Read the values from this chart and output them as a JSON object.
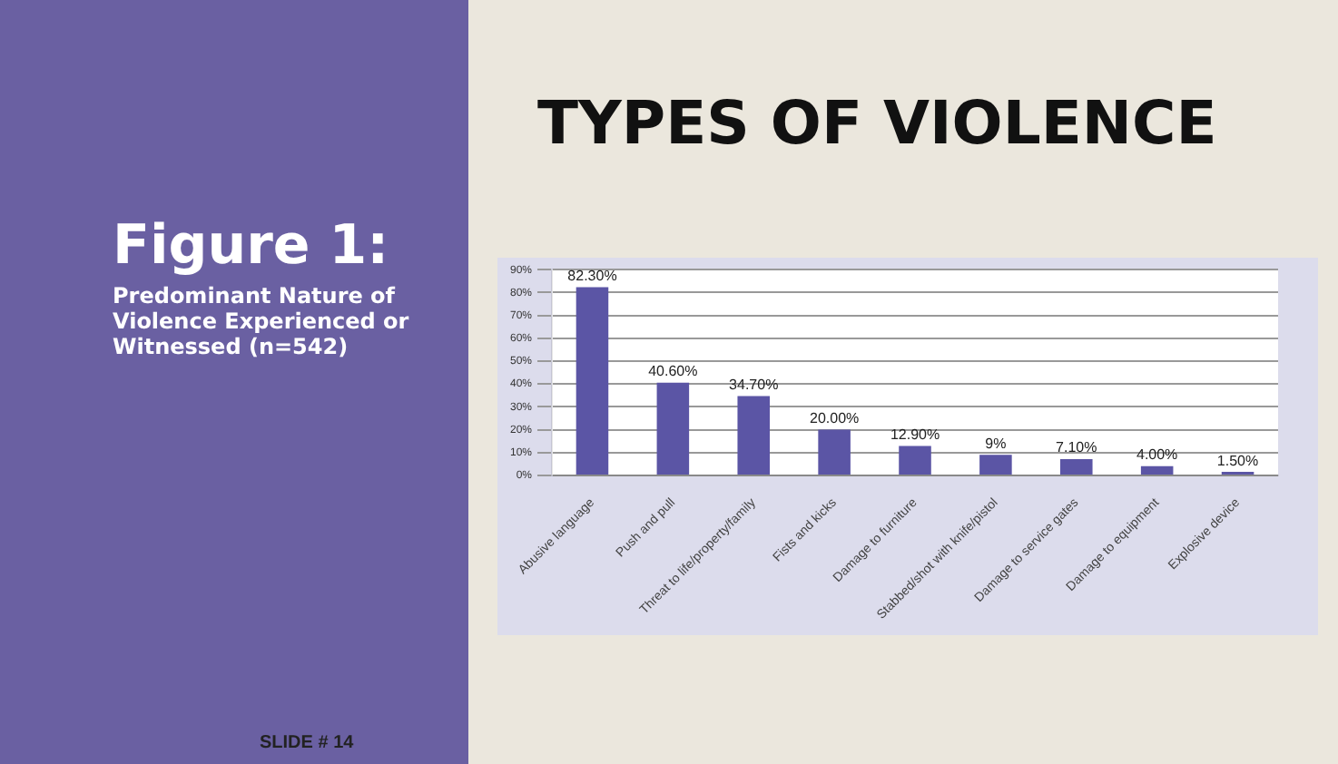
{
  "chart_data": {
    "type": "bar",
    "title": "TYPES OF VIOLENCE",
    "annotations": [
      "Figure 1:",
      "Predominant Nature of Violence Experienced or Witnessed (n=542)",
      "SLIDE # 14"
    ],
    "categories": [
      "Abusive language",
      "Push and pull",
      "Threat to life/property/family",
      "Fists and kicks",
      "Damage to furniture",
      "Stabbed/shot with knife/pistol",
      "Damage to service gates",
      "Damage to equipment",
      "Explosive device"
    ],
    "values": [
      82.3,
      40.6,
      34.7,
      20.0,
      12.9,
      9,
      7.1,
      4.0,
      1.5
    ],
    "value_labels": [
      "82.30%",
      "40.60%",
      "34.70%",
      "20.00%",
      "12.90%",
      "9%",
      "7.10%",
      "4.00%",
      "1.50%"
    ],
    "color": "#5b55a5",
    "ylim": [
      0,
      90
    ],
    "yticks": [
      {
        "value": 0,
        "label": "0%"
      },
      {
        "value": 10,
        "label": "10%"
      },
      {
        "value": 20,
        "label": "20%"
      },
      {
        "value": 30,
        "label": "30%"
      },
      {
        "value": 40,
        "label": "40%"
      },
      {
        "value": 50,
        "label": "50%"
      },
      {
        "value": 60,
        "label": "60%"
      },
      {
        "value": 70,
        "label": "70%"
      },
      {
        "value": 80,
        "label": "80%"
      },
      {
        "value": 90,
        "label": "90%"
      }
    ],
    "grid": "y",
    "legend": false
  }
}
